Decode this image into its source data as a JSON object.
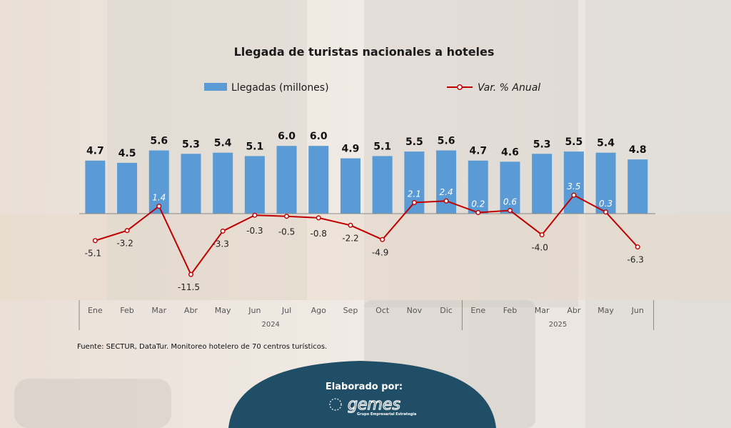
{
  "chart_data": {
    "type": "bar",
    "title": "Llegada de turistas nacionales a hoteles",
    "categories": [
      "Ene",
      "Feb",
      "Mar",
      "Abr",
      "May",
      "Jun",
      "Jul",
      "Ago",
      "Sep",
      "Oct",
      "Nov",
      "Dic",
      "Ene",
      "Feb",
      "Mar",
      "Abr",
      "May",
      "Jun"
    ],
    "groups": [
      {
        "label": "2024",
        "start": 0,
        "end": 11
      },
      {
        "label": "2025",
        "start": 12,
        "end": 17
      }
    ],
    "series": [
      {
        "name": "Llegadas (millones)",
        "type": "bar",
        "values": [
          4.7,
          4.5,
          5.6,
          5.3,
          5.4,
          5.1,
          6.0,
          6.0,
          4.9,
          5.1,
          5.5,
          5.6,
          4.7,
          4.6,
          5.3,
          5.5,
          5.4,
          4.8
        ],
        "labels": [
          "4.7",
          "4.5",
          "5.6",
          "5.3",
          "5.4",
          "5.1",
          "6.0",
          "6.0",
          "4.9",
          "5.1",
          "5.5",
          "5.6",
          "4.7",
          "4.6",
          "5.3",
          "5.5",
          "5.4",
          "4.8"
        ]
      },
      {
        "name": "Var. % Anual",
        "type": "line",
        "values": [
          -5.1,
          -3.2,
          1.4,
          -11.5,
          -3.3,
          -0.3,
          -0.5,
          -0.8,
          -2.2,
          -4.9,
          2.1,
          2.4,
          0.2,
          0.6,
          -4.0,
          3.5,
          0.3,
          -6.3
        ],
        "labels": [
          "-5.1",
          "-3.2",
          "1.4",
          "-11.5",
          "-3.3",
          "-0.3",
          "-0.5",
          "-0.8",
          "-2.2",
          "-4.9",
          "2.1",
          "2.4",
          "0.2",
          "0.6",
          "-4.0",
          "3.5",
          "0.3",
          "-6.3"
        ]
      }
    ],
    "legend_position": "top",
    "grid": false,
    "colors": {
      "bar": "#5b9bd5",
      "line": "#c00000",
      "footer": "#1f4e66"
    }
  },
  "source": "Fuente: SECTUR, DataTur. Monitoreo hotelero de 70 centros turísticos.",
  "footer": {
    "label": "Elaborado por:",
    "logo_text": "gemes",
    "logo_subtitle": "Grupo Empresarial Estrategia"
  }
}
